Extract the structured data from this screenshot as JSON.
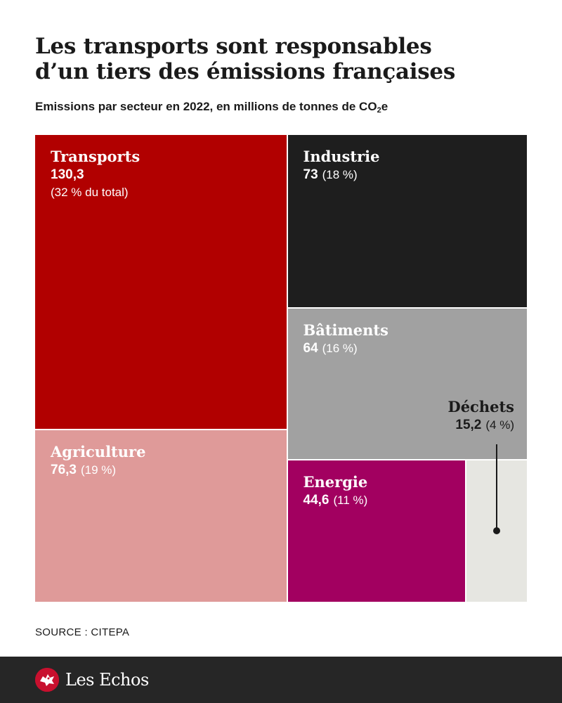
{
  "header": {
    "title_line1": "Les transports sont responsables",
    "title_line2": "d’un tiers des émissions françaises",
    "subtitle_main": "Emissions par secteur en 2022, en millions de tonnes de CO",
    "subtitle_sub": "2",
    "subtitle_end": "e"
  },
  "chart_data": {
    "type": "treemap",
    "title": "Les transports sont responsables d’un tiers des émissions françaises",
    "subtitle": "Emissions par secteur en 2022, en millions de tonnes de CO2e",
    "unit": "millions de tonnes de CO2e",
    "sectors": [
      {
        "name": "Transports",
        "value": 130.3,
        "value_label": "130,3",
        "share_pct": 32,
        "pct_label": "(32 % du total)",
        "color": "#b10000"
      },
      {
        "name": "Industrie",
        "value": 73,
        "value_label": "73",
        "share_pct": 18,
        "pct_label": "(18 %)",
        "color": "#1e1e1e"
      },
      {
        "name": "Bâtiments",
        "value": 64,
        "value_label": "64",
        "share_pct": 16,
        "pct_label": "(16 %)",
        "color": "#a1a1a1"
      },
      {
        "name": "Agriculture",
        "value": 76.3,
        "value_label": "76,3",
        "share_pct": 19,
        "pct_label": "(19 %)",
        "color": "#df9a99"
      },
      {
        "name": "Energie",
        "value": 44.6,
        "value_label": "44,6",
        "share_pct": 11,
        "pct_label": "(11 %)",
        "color": "#a20060"
      },
      {
        "name": "Déchets",
        "value": 15.2,
        "value_label": "15,2",
        "share_pct": 4,
        "pct_label": "(4 %)",
        "color": "#e6e6e1"
      }
    ]
  },
  "source": "SOURCE : CITEPA",
  "footer": {
    "brand": "Les Echos",
    "brand_color": "#c8102e",
    "background": "#262626"
  }
}
